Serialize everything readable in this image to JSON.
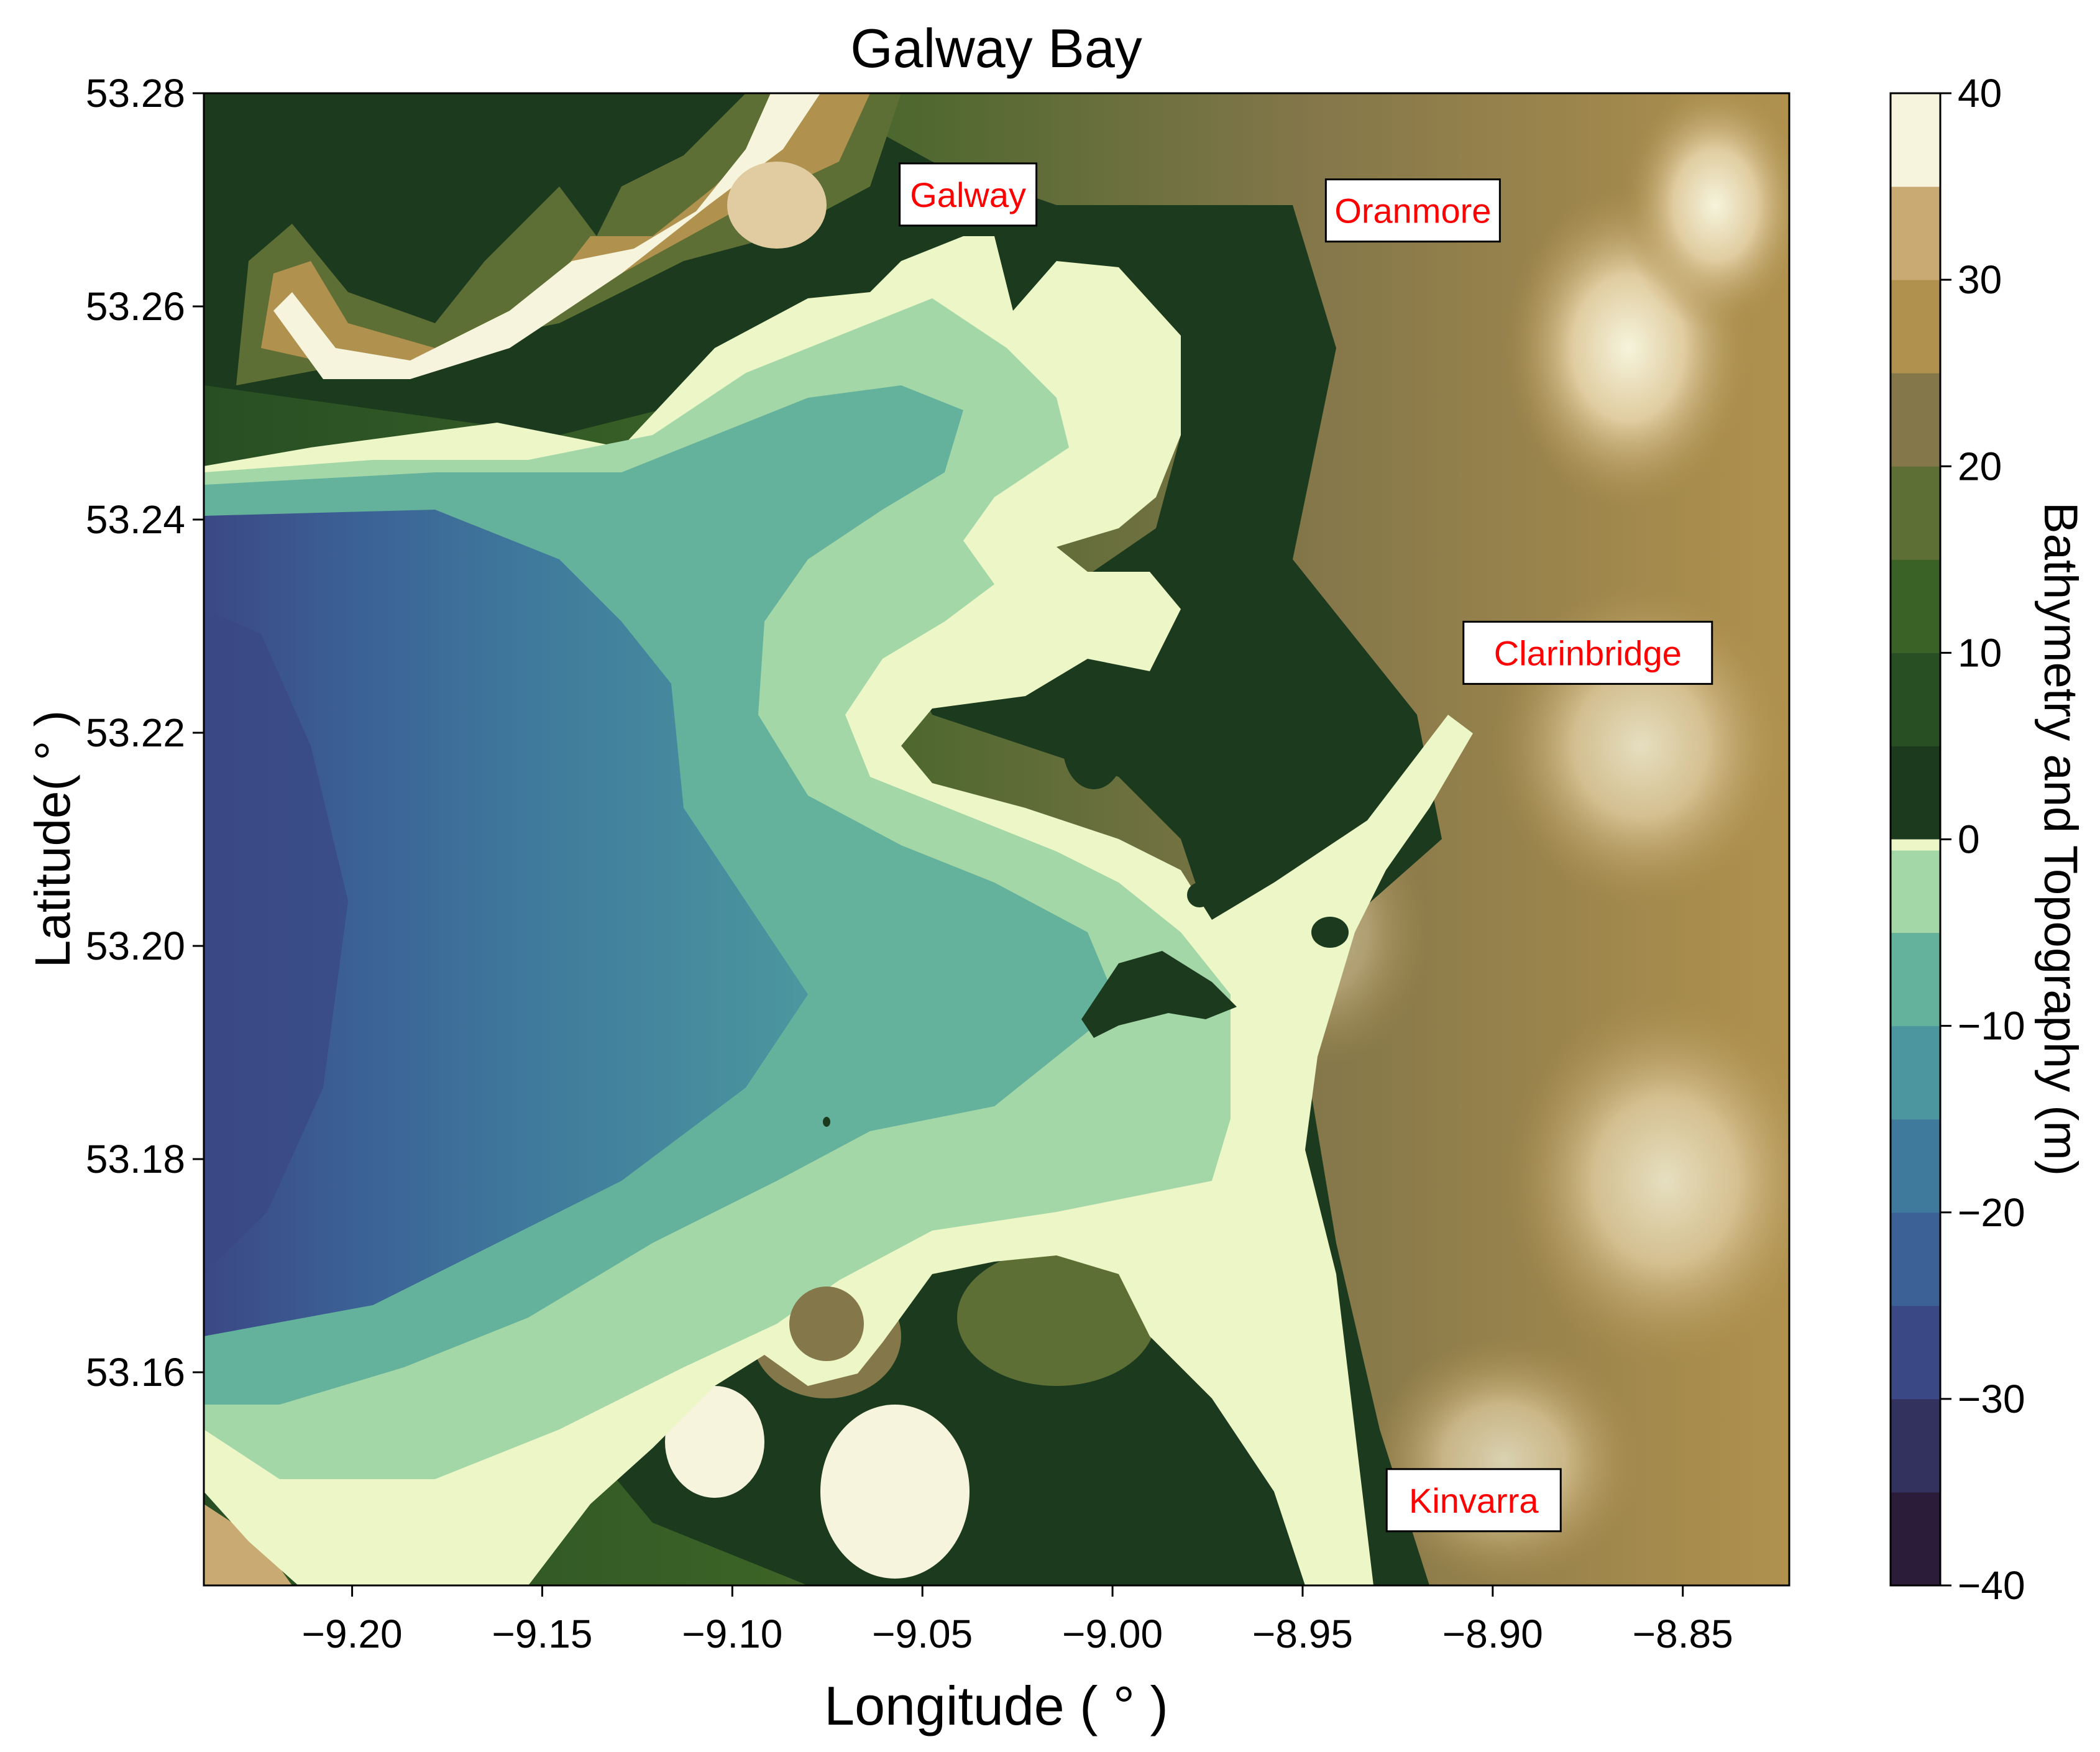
{
  "figure": {
    "title": "Galway Bay",
    "xlabel": "Longitude ( $^\\circ$ )",
    "xlabel_display": "Longitude ( ° )",
    "ylabel_display": "Latitude( ° )",
    "colorbar_label": "Bathymetry and Topography (m)"
  },
  "map": {
    "lon_range": [
      -9.239,
      -8.822
    ],
    "lat_range": [
      53.14,
      53.28
    ],
    "x_ticks": [
      {
        "value": -9.2,
        "label": "−9.20"
      },
      {
        "value": -9.15,
        "label": "−9.15"
      },
      {
        "value": -9.1,
        "label": "−9.10"
      },
      {
        "value": -9.05,
        "label": "−9.05"
      },
      {
        "value": -9.0,
        "label": "−9.00"
      },
      {
        "value": -8.95,
        "label": "−8.95"
      },
      {
        "value": -8.9,
        "label": "−8.90"
      },
      {
        "value": -8.85,
        "label": "−8.85"
      }
    ],
    "y_ticks": [
      {
        "value": 53.16,
        "label": "53.16"
      },
      {
        "value": 53.18,
        "label": "53.18"
      },
      {
        "value": 53.2,
        "label": "53.20"
      },
      {
        "value": 53.22,
        "label": "53.22"
      },
      {
        "value": 53.24,
        "label": "53.24"
      },
      {
        "value": 53.26,
        "label": "53.26"
      },
      {
        "value": 53.28,
        "label": "53.28"
      }
    ],
    "places": [
      {
        "name": "Galway",
        "lon": -9.038,
        "lat": 53.2705
      },
      {
        "name": "Oranmore",
        "lon": -8.921,
        "lat": 53.269
      },
      {
        "name": "Clarinbridge",
        "lon": -8.875,
        "lat": 53.2275
      },
      {
        "name": "Kinvarra",
        "lon": -8.905,
        "lat": 53.148
      }
    ],
    "place_label_color": "#ff0000"
  },
  "colorbar": {
    "range": [
      -40,
      40
    ],
    "ticks": [
      {
        "value": 40,
        "label": "40"
      },
      {
        "value": 30,
        "label": "30"
      },
      {
        "value": 20,
        "label": "20"
      },
      {
        "value": 10,
        "label": "10"
      },
      {
        "value": 0,
        "label": "0"
      },
      {
        "value": -10,
        "label": "−10"
      },
      {
        "value": -20,
        "label": "−20"
      },
      {
        "value": -30,
        "label": "−30"
      },
      {
        "value": -40,
        "label": "−40"
      }
    ],
    "colors": {
      "-40": "#2b1d3a",
      "-35": "#33325f",
      "-30": "#3b4886",
      "-25": "#3b6196",
      "-20": "#3f7a9c",
      "-15": "#4c979f",
      "-10": "#64b29b",
      "-5": "#a4d7a8",
      "0": "#ecf6c6",
      "0+": "#1c3a1e",
      "5": "#284f24",
      "10": "#3b6226",
      "15": "#5e6f36",
      "20": "#84774a",
      "25": "#b0914e",
      "30": "#c9aa72",
      "35": "#e0cca0",
      "40": "#f6f4dc"
    }
  },
  "chart_data": {
    "type": "heatmap",
    "title": "Galway Bay",
    "xlabel": "Longitude ( ° )",
    "ylabel": "Latitude( ° )",
    "colorbar_label": "Bathymetry and Topography (m)",
    "xlim": [
      -9.239,
      -8.822
    ],
    "ylim": [
      53.14,
      53.28
    ],
    "clim": [
      -40,
      40
    ],
    "x_ticks": [
      -9.2,
      -9.15,
      -9.1,
      -9.05,
      -9.0,
      -8.95,
      -8.9,
      -8.85
    ],
    "y_ticks": [
      53.16,
      53.18,
      53.2,
      53.22,
      53.24,
      53.26,
      53.28
    ],
    "annotations": [
      "Galway",
      "Oranmore",
      "Clarinbridge",
      "Kinvarra"
    ]
  }
}
